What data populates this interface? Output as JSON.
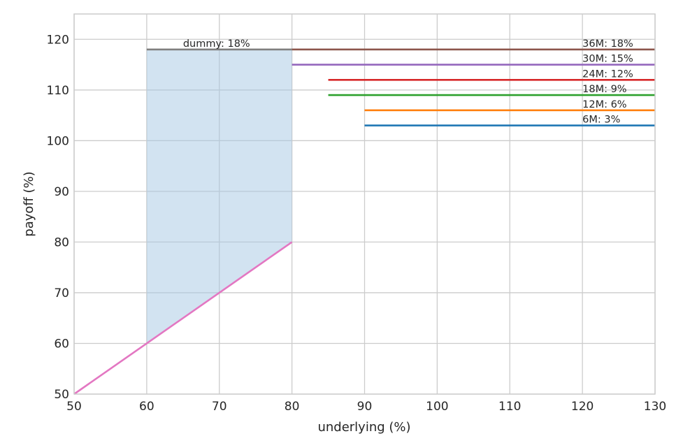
{
  "chart_data": {
    "type": "line",
    "title": "",
    "xlabel": "underlying (%)",
    "ylabel": "payoff (%)",
    "xlim": [
      50,
      130
    ],
    "ylim": [
      50,
      125
    ],
    "xticks": [
      50,
      60,
      70,
      80,
      90,
      100,
      110,
      120,
      130
    ],
    "yticks": [
      50,
      60,
      70,
      80,
      90,
      100,
      110,
      120
    ],
    "grid": true,
    "series": [
      {
        "name": "6M: 3%",
        "color": "#1f77b4",
        "x": [
          90,
          130
        ],
        "y": [
          103,
          103
        ]
      },
      {
        "name": "12M: 6%",
        "color": "#ff7f0e",
        "x": [
          90,
          130
        ],
        "y": [
          106,
          106
        ]
      },
      {
        "name": "18M: 9%",
        "color": "#2ca02c",
        "x": [
          85,
          130
        ],
        "y": [
          109,
          109
        ]
      },
      {
        "name": "24M: 12%",
        "color": "#d62728",
        "x": [
          85,
          130
        ],
        "y": [
          112,
          112
        ]
      },
      {
        "name": "30M: 15%",
        "color": "#9467bd",
        "x": [
          80,
          130
        ],
        "y": [
          115,
          115
        ]
      },
      {
        "name": "36M: 18%",
        "color": "#8c564b",
        "x": [
          80,
          130
        ],
        "y": [
          118,
          118
        ]
      },
      {
        "name": "dummy: 18%",
        "color": "#7f7f7f",
        "x": [
          60,
          80
        ],
        "y": [
          118,
          118
        ]
      },
      {
        "color": "#e377c2",
        "x": [
          50,
          80
        ],
        "y": [
          50,
          80
        ]
      }
    ],
    "shaded_region": {
      "color": "#a6c8e3",
      "x": [
        60,
        80
      ],
      "y_lower": [
        60,
        80
      ],
      "y_upper": [
        118,
        118
      ]
    },
    "labels": [
      {
        "text": "dummy: 18%",
        "x": 65,
        "y": 118
      },
      {
        "text": "36M: 18%",
        "x": 120,
        "y": 118
      },
      {
        "text": "30M: 15%",
        "x": 120,
        "y": 115
      },
      {
        "text": "24M: 12%",
        "x": 120,
        "y": 112
      },
      {
        "text": "18M: 9%",
        "x": 120,
        "y": 109
      },
      {
        "text": "12M: 6%",
        "x": 120,
        "y": 106
      },
      {
        "text": "6M: 3%",
        "x": 120,
        "y": 103
      }
    ]
  }
}
